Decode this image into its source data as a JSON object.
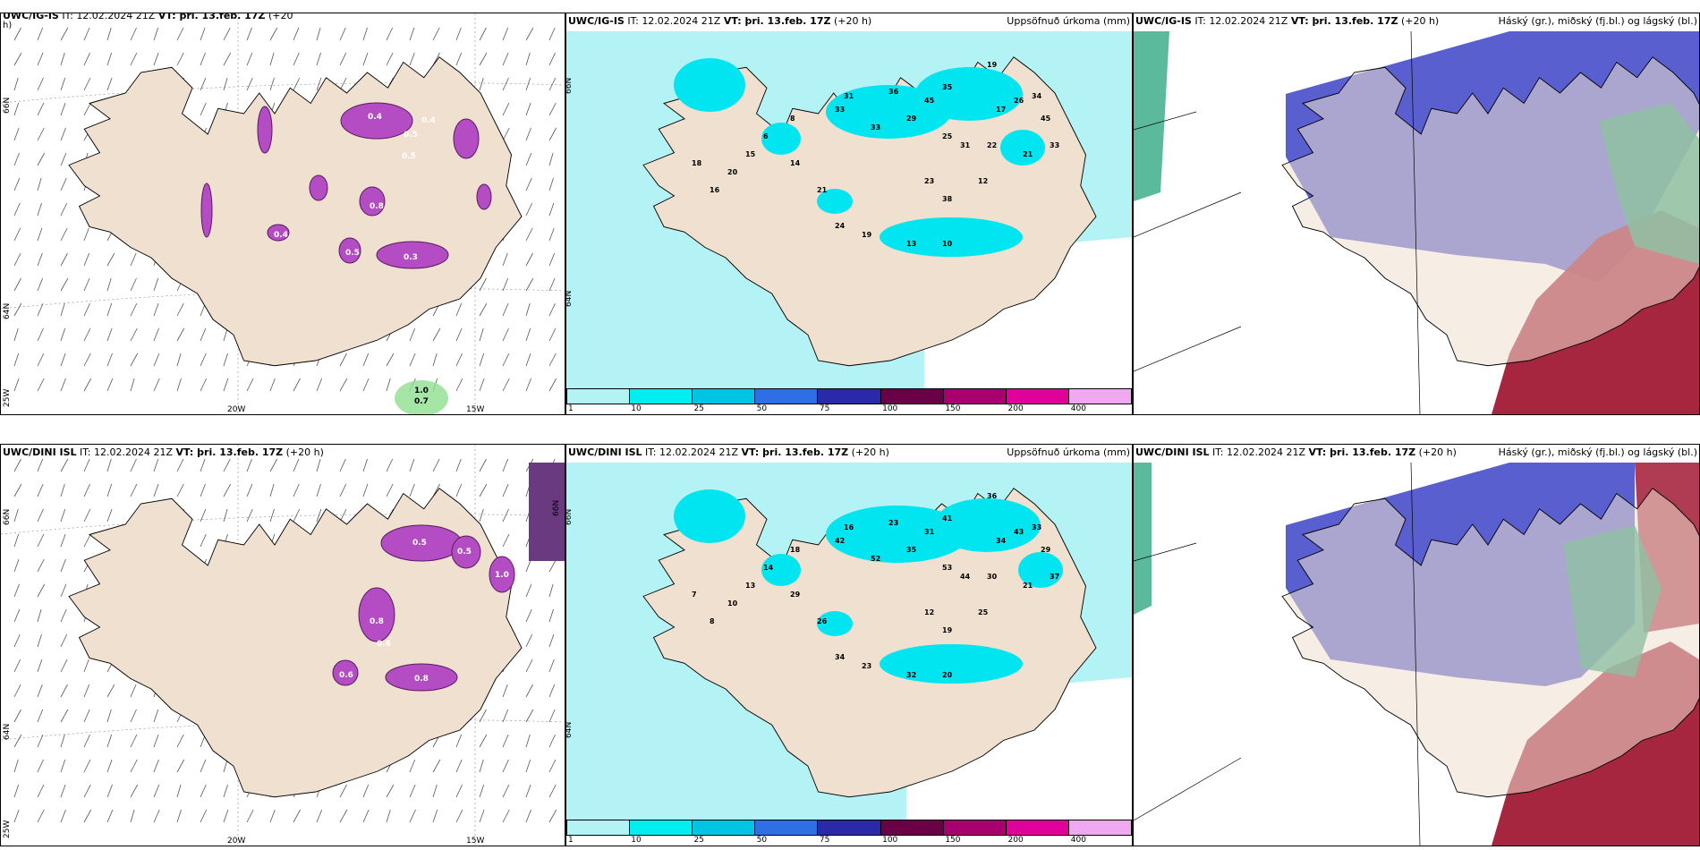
{
  "colors": {
    "land": "#efe0d0",
    "sea_cyan": "#b4f3f5",
    "precip_mid": "#00e5ef",
    "precip_blue": "#00c8e6",
    "purple_precip": "#b44cc4",
    "low_cloud": "#5a5fd0",
    "high_cloud": "#a11a35",
    "mid_cloud": "#1c9a6c"
  },
  "panels": {
    "top_left": {
      "title_model": "UWC/IG-IS",
      "title_rest": " IT: 12.02.2024 21Z ",
      "title_vt": "VT: þri. 13.feb. 17Z",
      "title_lead": " (+20",
      "title_cont": "h)",
      "lat_labels": [
        "66N",
        "64N",
        "25W"
      ],
      "lon_labels": [
        "20W",
        "15W"
      ],
      "values": [
        "0.4",
        "0.5",
        "0.5",
        "0.4",
        "0.8",
        "0.5",
        "0.4",
        "0.3",
        "1.0",
        "0.7"
      ]
    },
    "top_mid": {
      "title_model": "UWC/IG-IS",
      "title_rest": " IT: 12.02.2024 21Z ",
      "title_vt": "VT: þri. 13.feb. 17Z",
      "title_lead": " (+20 h)",
      "title_right": "Uppsöfnuð úrkoma (mm)",
      "lat_labels": [
        "66N",
        "64N"
      ],
      "numbers": [
        "31",
        "36",
        "45",
        "35",
        "19",
        "17",
        "26",
        "34",
        "33",
        "33",
        "29",
        "25",
        "31",
        "22",
        "21",
        "45",
        "33",
        "23",
        "38",
        "12",
        "21",
        "14",
        "24",
        "19",
        "13",
        "10",
        "8",
        "6",
        "15",
        "20",
        "16",
        "18"
      ]
    },
    "top_right": {
      "title_model": "UWC/IG-IS",
      "title_rest": " IT: 12.02.2024 21Z ",
      "title_vt": "VT: þri. 13.feb. 17Z",
      "title_lead": " (+20 h)",
      "title_right": "Háský (gr.), miðský (fj.bl.) og lágský (bl.)"
    },
    "bottom_left": {
      "title_model": "UWC/DINI ISL",
      "title_rest": " IT: 12.02.2024 21Z ",
      "title_vt": "VT: þri. 13.feb. 17Z",
      "title_lead": " (+20 h)",
      "lat_labels": [
        "66N",
        "64N",
        "25W",
        "66N"
      ],
      "lon_labels": [
        "20W",
        "15W"
      ],
      "values": [
        "0.5",
        "0.5",
        "0.8",
        "1.0",
        "0.8",
        "0.6",
        "0.6"
      ]
    },
    "bottom_mid": {
      "title_model": "UWC/DINI ISL",
      "title_rest": " IT: 12.02.2024 21Z ",
      "title_vt": "VT: þri. 13.feb. 17Z",
      "title_lead": " (+20 h)",
      "title_right": "Uppsöfnuð úrkoma (mm)",
      "lat_labels": [
        "66N",
        "64N"
      ],
      "numbers": [
        "16",
        "23",
        "31",
        "41",
        "36",
        "34",
        "43",
        "33",
        "42",
        "52",
        "35",
        "53",
        "44",
        "30",
        "21",
        "29",
        "37",
        "12",
        "19",
        "25",
        "26",
        "29",
        "34",
        "23",
        "32",
        "20",
        "18",
        "14",
        "13",
        "10",
        "8",
        "7"
      ]
    },
    "bottom_right": {
      "title_model": "UWC/DINI ISL",
      "title_rest": " IT: 12.02.2024 21Z ",
      "title_vt": "VT: þri. 13.feb. 17Z",
      "title_lead": " (+20 h)",
      "title_right": "Háský (gr.), miðský (fj.bl.) og lágský (bl.)"
    }
  },
  "legend": {
    "ticks": [
      "1",
      "10",
      "25",
      "50",
      "75",
      "100",
      "150",
      "200",
      "400"
    ],
    "colors": [
      "#b4f3f5",
      "#00eef0",
      "#00c4e4",
      "#2f6fe6",
      "#2a2aa8",
      "#6a0046",
      "#a8006e",
      "#e0009a",
      "#f0a8f0"
    ]
  }
}
